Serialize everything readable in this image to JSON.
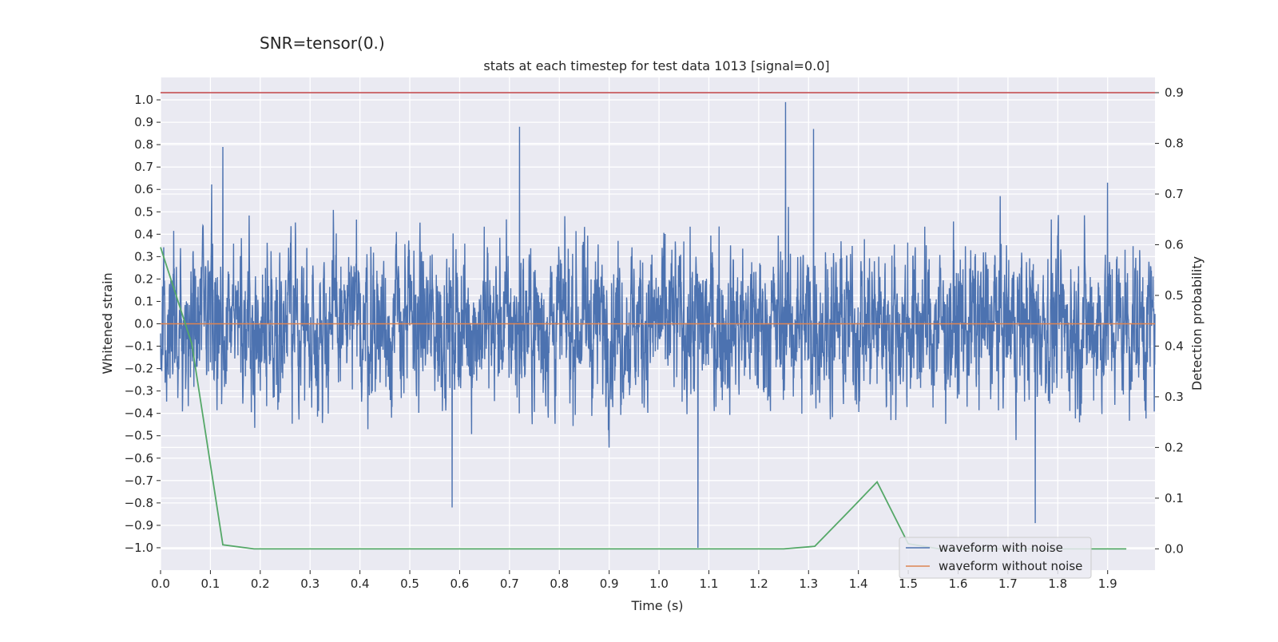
{
  "figure": {
    "suptitle": "SNR=tensor(0.)"
  },
  "chart_data": {
    "type": "line",
    "title": "stats at each timestep for test data 1013 [signal=0.0]",
    "xlabel": "Time (s)",
    "ylabel": "Whitened strain",
    "ylabel_right": "Detection probability",
    "xlim": [
      0.0,
      1.995
    ],
    "ylim": [
      -1.1,
      1.1
    ],
    "ylim_right": [
      -0.042,
      0.93
    ],
    "x_ticks": [
      "0.0",
      "0.1",
      "0.2",
      "0.3",
      "0.4",
      "0.5",
      "0.6",
      "0.7",
      "0.8",
      "0.9",
      "1.0",
      "1.1",
      "1.2",
      "1.3",
      "1.4",
      "1.5",
      "1.6",
      "1.7",
      "1.8",
      "1.9"
    ],
    "y_ticks": [
      "1.0",
      "0.9",
      "0.8",
      "0.7",
      "0.6",
      "0.5",
      "0.4",
      "0.3",
      "0.2",
      "0.1",
      "0.0",
      "−0.1",
      "−0.2",
      "−0.3",
      "−0.4",
      "−0.5",
      "−0.6",
      "−0.7",
      "−0.8",
      "−0.9",
      "−1.0"
    ],
    "y_right_ticks": [
      "0.9",
      "0.8",
      "0.7",
      "0.6",
      "0.5",
      "0.4",
      "0.3",
      "0.2",
      "0.1",
      "0.0"
    ],
    "grid": true,
    "legend_position": "lower-right",
    "series": [
      {
        "name": "waveform with noise",
        "axis": "left",
        "color": "#4c72b0",
        "note": "dense noise trace sampled at 2048 Hz, values approx within [-1, 1]",
        "notable_points": [
          {
            "x": 1.254,
            "y": 0.99
          },
          {
            "x": 0.72,
            "y": 0.88
          },
          {
            "x": 1.31,
            "y": 0.87
          },
          {
            "x": 1.078,
            "y": -1.0
          },
          {
            "x": 1.755,
            "y": -0.89
          },
          {
            "x": 0.585,
            "y": -0.82
          },
          {
            "x": 1.9,
            "y": 0.63
          },
          {
            "x": 0.125,
            "y": 0.79
          }
        ]
      },
      {
        "name": "waveform without noise",
        "axis": "left",
        "color": "#dd8452",
        "x": [
          0.0,
          1.995
        ],
        "y": [
          0.0,
          0.0
        ]
      },
      {
        "name": "",
        "axis": "right",
        "color": "#55a868",
        "x": [
          0.0,
          0.0625,
          0.125,
          0.1875,
          0.25,
          0.3125,
          0.375,
          0.4375,
          0.5,
          0.5625,
          0.625,
          0.6875,
          0.75,
          0.8125,
          0.875,
          0.9375,
          1.0,
          1.0625,
          1.125,
          1.1875,
          1.25,
          1.3125,
          1.375,
          1.4375,
          1.5,
          1.5625,
          1.625,
          1.6875,
          1.75,
          1.8125,
          1.875,
          1.9375
        ],
        "y": [
          0.595,
          0.405,
          0.008,
          0.0,
          0.0,
          0.0,
          0.0,
          0.0,
          0.0,
          0.0,
          0.0,
          0.0,
          0.0,
          0.0,
          0.0,
          0.0,
          0.0,
          0.0,
          0.0,
          0.0,
          0.0,
          0.005,
          0.068,
          0.132,
          0.01,
          0.0,
          0.0,
          0.0,
          0.0,
          0.0,
          0.0,
          0.0
        ]
      },
      {
        "name": "",
        "axis": "right",
        "color": "#c44e52",
        "x": [
          0.0,
          1.995
        ],
        "y": [
          0.9,
          0.9
        ]
      }
    ]
  }
}
